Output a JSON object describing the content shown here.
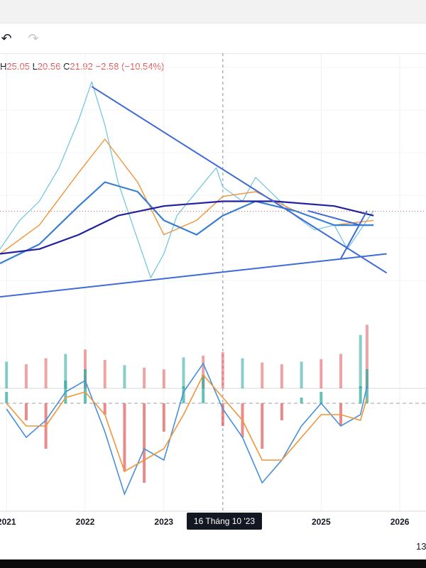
{
  "toolbar": {
    "undo_icon": "undo-icon",
    "redo_icon": "redo-icon"
  },
  "legend": {
    "h_label": "H",
    "h_value": "25.05",
    "l_label": "L",
    "l_value": "20.56",
    "c_label": "C",
    "c_value": "21.92",
    "change": "−2.58 (−10.54%)"
  },
  "crosshair": {
    "date_label": "16 Tháng 10 '23"
  },
  "corner_text": "13",
  "colors": {
    "down": "#e05a5a",
    "up": "#26a69a",
    "trendline": "#3f6bd6",
    "ma_long": "#2222a0",
    "ma_mid": "#3a7fd0",
    "ma_short": "#f0953a",
    "band": "#6bc4e0"
  },
  "chart_data": {
    "type": "line",
    "x_axis": {
      "type": "date",
      "tick_labels": [
        "2021",
        "2022",
        "2023",
        "2025",
        "2026"
      ],
      "range": [
        "2020-12",
        "2026-05"
      ]
    },
    "price_panel": {
      "series": [
        {
          "x": [
            "2020-12",
            "2021-03",
            "2021-06",
            "2021-09",
            "2021-12",
            "2022-02",
            "2022-04",
            "2022-06",
            "2022-09",
            "2022-11",
            "2023-01",
            "2023-03",
            "2023-06",
            "2023-09",
            "2023-10",
            "2024-01",
            "2024-03",
            "2024-06",
            "2024-09",
            "2024-12",
            "2025-03",
            "2025-05",
            "2025-07",
            "2025-09"
          ],
          "y": [
            14,
            20,
            24,
            31,
            41,
            49,
            40,
            28,
            16,
            8,
            13,
            21,
            26,
            31,
            27,
            24,
            29,
            25,
            21,
            18,
            19,
            14,
            18,
            22
          ]
        },
        {
          "x": [
            "2020-12",
            "2021-06",
            "2021-12",
            "2022-04",
            "2022-09",
            "2023-01",
            "2023-06",
            "2023-10",
            "2024-03",
            "2024-09",
            "2025-03",
            "2025-09"
          ],
          "y": [
            13,
            19,
            30,
            37,
            28,
            17,
            20,
            25,
            26,
            22,
            19,
            20
          ]
        },
        {
          "x": [
            "2020-12",
            "2021-06",
            "2021-12",
            "2022-04",
            "2022-09",
            "2023-01",
            "2023-06",
            "2023-10",
            "2024-03",
            "2024-09",
            "2025-03",
            "2025-09"
          ],
          "y": [
            11,
            15,
            23,
            28,
            26,
            20,
            17,
            21,
            24,
            22,
            19,
            19
          ]
        },
        {
          "x": [
            "2020-12",
            "2021-06",
            "2021-12",
            "2022-06",
            "2023-01",
            "2023-10",
            "2024-06",
            "2025-03",
            "2025-09"
          ],
          "y": [
            13,
            14,
            17,
            21,
            23,
            24,
            24,
            23,
            21
          ]
        }
      ],
      "trendlines": [
        {
          "x": [
            "2022-02",
            "2025-11"
          ],
          "y": [
            48,
            9
          ]
        },
        {
          "x": [
            "2020-12",
            "2025-11"
          ],
          "y": [
            4,
            13
          ]
        },
        {
          "x": [
            "2024-11",
            "2025-07"
          ],
          "y": [
            22,
            19
          ]
        },
        {
          "x": [
            "2025-04",
            "2025-08"
          ],
          "y": [
            12,
            22
          ]
        }
      ],
      "last_price": 21.92
    },
    "volume_panel": {
      "x": [
        "2021-01",
        "2021-04",
        "2021-07",
        "2021-10",
        "2022-01",
        "2022-04",
        "2022-07",
        "2022-10",
        "2023-01",
        "2023-04",
        "2023-07",
        "2023-10",
        "2024-01",
        "2024-04",
        "2024-07",
        "2024-10",
        "2025-01",
        "2025-04",
        "2025-07",
        "2025-08"
      ],
      "values": [
        31,
        28,
        35,
        40,
        45,
        33,
        27,
        24,
        22,
        36,
        38,
        42,
        35,
        30,
        28,
        31,
        34,
        40,
        62,
        74
      ]
    },
    "oscillator_panel": {
      "x": [
        "2021-01",
        "2021-04",
        "2021-07",
        "2021-10",
        "2022-01",
        "2022-04",
        "2022-07",
        "2022-10",
        "2023-01",
        "2023-04",
        "2023-07",
        "2023-10",
        "2024-01",
        "2024-04",
        "2024-07",
        "2024-10",
        "2025-01",
        "2025-04",
        "2025-07",
        "2025-08"
      ],
      "histogram": [
        2,
        -3,
        -8,
        4,
        6,
        -2,
        -12,
        -14,
        -5,
        3,
        5,
        -4,
        -6,
        -8,
        -3,
        1,
        2,
        -4,
        3,
        6
      ],
      "lines": [
        {
          "values": [
            -1,
            -6,
            -3,
            2,
            4,
            -5,
            -16,
            -8,
            -10,
            2,
            7,
            -1,
            -6,
            -14,
            -10,
            -4,
            0,
            -4,
            -2,
            3
          ]
        },
        {
          "values": [
            0,
            -4,
            -4,
            1,
            2,
            -2,
            -12,
            -10,
            -8,
            -2,
            5,
            1,
            -3,
            -10,
            -10,
            -6,
            -2,
            -2,
            -3,
            1
          ]
        }
      ]
    },
    "annotations": [
      "16 Tháng 10 '23"
    ],
    "grid": true,
    "legend": "none"
  }
}
